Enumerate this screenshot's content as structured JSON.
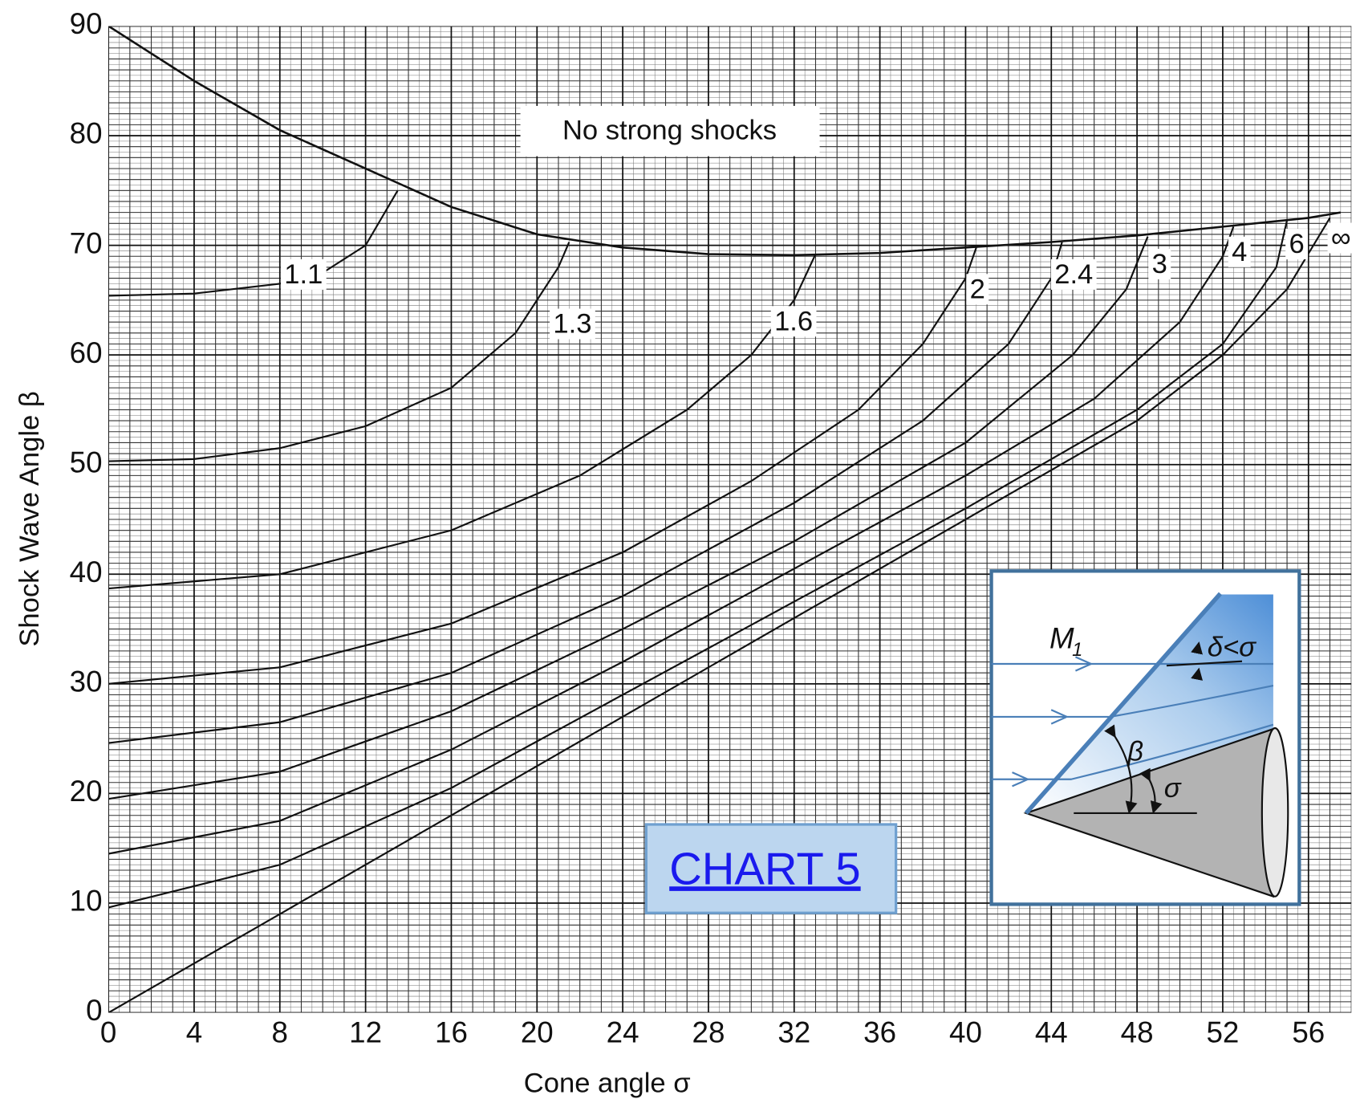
{
  "chart_data": {
    "type": "line",
    "xlabel": "Cone angle σ",
    "ylabel": "Shock Wave Angle β",
    "xlim": [
      0,
      58
    ],
    "ylim": [
      0,
      90
    ],
    "xticks": [
      0,
      4,
      8,
      12,
      16,
      20,
      24,
      28,
      32,
      36,
      40,
      44,
      48,
      52,
      56
    ],
    "yticks": [
      0,
      10,
      20,
      30,
      40,
      50,
      60,
      70,
      80,
      90
    ],
    "grid": true,
    "color": "#111111",
    "series": [
      {
        "name": "1.1",
        "x": [
          0,
          4,
          8,
          10,
          12,
          13.5
        ],
        "values": [
          65.4,
          65.6,
          66.5,
          67.5,
          70,
          75
        ]
      },
      {
        "name": "1.3",
        "x": [
          0,
          4,
          8,
          12,
          16,
          19,
          21,
          21.5
        ],
        "values": [
          50.3,
          50.5,
          51.5,
          53.5,
          57,
          62,
          68,
          70.3
        ]
      },
      {
        "name": "1.6",
        "x": [
          0,
          8,
          16,
          22,
          27,
          30,
          32,
          33
        ],
        "values": [
          38.7,
          40,
          44,
          49,
          55,
          60,
          65,
          69.2
        ]
      },
      {
        "name": "2",
        "x": [
          0,
          8,
          16,
          24,
          30,
          35,
          38,
          40,
          40.5
        ],
        "values": [
          30,
          31.5,
          35.5,
          42,
          48.5,
          55,
          61,
          67,
          69.8
        ]
      },
      {
        "name": "2.4",
        "x": [
          0,
          8,
          16,
          24,
          32,
          38,
          42,
          44,
          44.5
        ],
        "values": [
          24.6,
          26.5,
          31,
          38,
          46.5,
          54,
          61,
          67,
          70.3
        ]
      },
      {
        "name": "3",
        "x": [
          0,
          8,
          16,
          24,
          32,
          40,
          45,
          47.5,
          48.5
        ],
        "values": [
          19.5,
          22,
          27.5,
          35,
          43,
          52,
          60,
          66,
          70.8
        ]
      },
      {
        "name": "4",
        "x": [
          0,
          8,
          16,
          24,
          32,
          40,
          46,
          50,
          52,
          52.5
        ],
        "values": [
          14.5,
          17.5,
          24,
          32,
          40.5,
          49,
          56,
          63,
          69,
          71.7
        ]
      },
      {
        "name": "6",
        "x": [
          0,
          8,
          16,
          24,
          32,
          40,
          48,
          52,
          54.5,
          55
        ],
        "values": [
          9.6,
          13.5,
          20.5,
          29,
          37.5,
          46,
          55,
          61,
          68,
          72.3
        ]
      },
      {
        "name": "∞",
        "x": [
          0,
          8,
          16,
          24,
          32,
          40,
          48,
          52,
          55,
          57
        ],
        "values": [
          0,
          9,
          18,
          27,
          36,
          45,
          54,
          60,
          66,
          72.5
        ]
      }
    ],
    "boundary": {
      "x": [
        0,
        4,
        8,
        12,
        16,
        20,
        24,
        28,
        32,
        36,
        40,
        44,
        48,
        52,
        56,
        57.5
      ],
      "values": [
        90,
        85,
        80.5,
        77,
        73.5,
        71,
        69.8,
        69.2,
        69.1,
        69.3,
        69.8,
        70.3,
        70.9,
        71.7,
        72.5,
        73
      ]
    },
    "annotations": {
      "region": "No strong shocks",
      "link": "CHART 5"
    },
    "diagram": {
      "mach": "M",
      "mach_sub": "1",
      "deflection": "δ<σ",
      "shock_angle": "β",
      "cone_angle": "σ"
    }
  }
}
